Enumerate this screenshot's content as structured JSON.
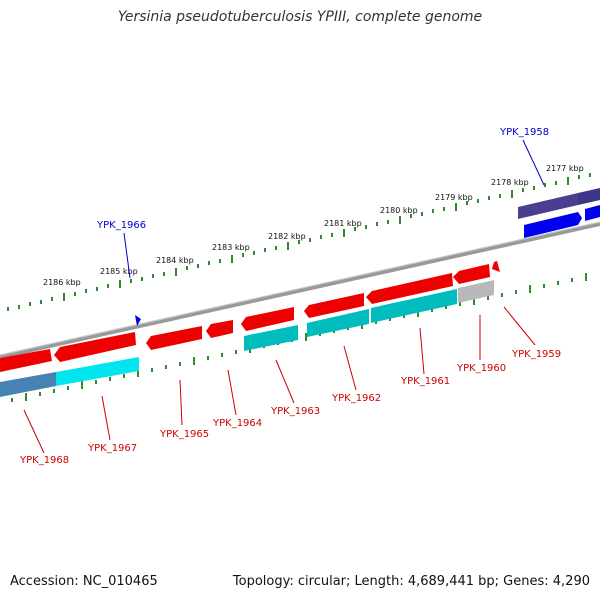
{
  "title": "Yersinia pseudotuberculosis YPIII, complete genome",
  "footer": {
    "accession": "Accession: NC_010465",
    "topology": "Topology: circular; Length: 4,689,441 bp; Genes: 4,290"
  },
  "kbp_labels": [
    "2177 kbp",
    "2178 kbp",
    "2179 kbp",
    "2180 kbp",
    "2181 kbp",
    "2182 kbp",
    "2183 kbp",
    "2184 kbp",
    "2185 kbp",
    "2186 kbp"
  ],
  "gene_labels_forward": [
    "YPK_1958",
    "YPK_1966"
  ],
  "gene_labels_reverse": [
    "YPK_1959",
    "YPK_1960",
    "YPK_1961",
    "YPK_1962",
    "YPK_1963",
    "YPK_1964",
    "YPK_1965",
    "YPK_1967",
    "YPK_1968"
  ],
  "colors": {
    "forward_gene": "#0000ff",
    "forward_gene_dark": "#4a3f8f",
    "reverse_gene": "#ff0000",
    "reverse_cds": "#00cccc",
    "backbone": "#888888",
    "tick": "#2e8b2e",
    "label_forward": "#0000cc",
    "label_reverse": "#cc0000"
  }
}
